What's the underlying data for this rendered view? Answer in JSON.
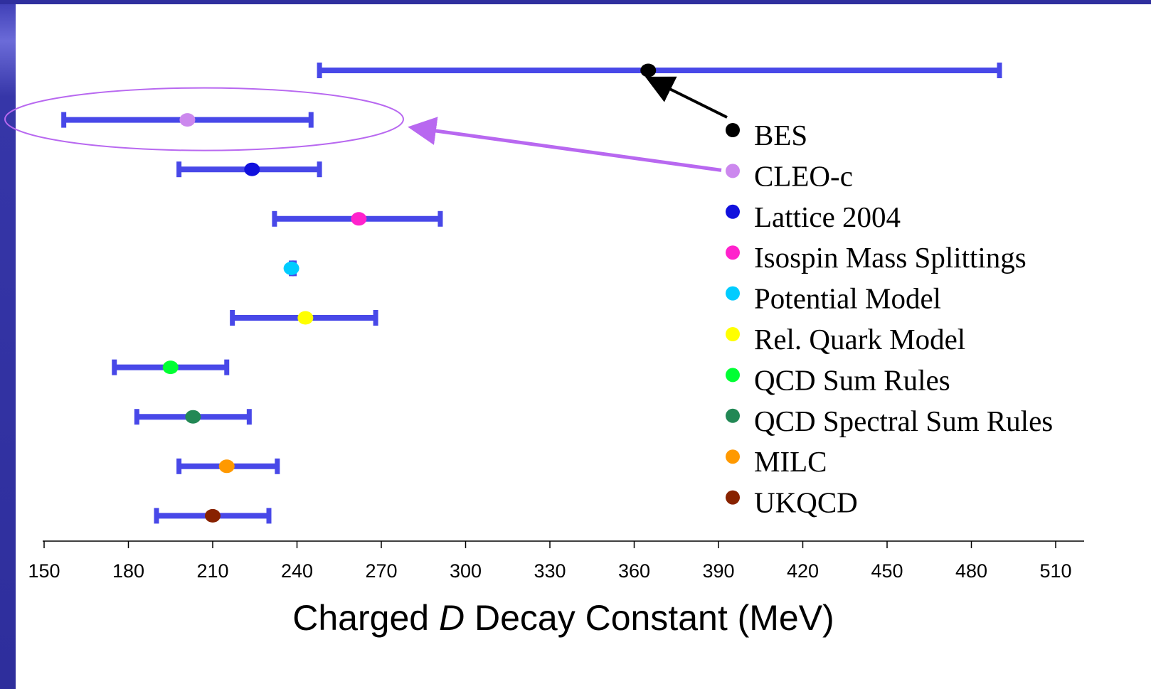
{
  "chart_data": {
    "type": "scatter",
    "xlabel_parts": [
      {
        "text": "Charged ",
        "italic": false
      },
      {
        "text": "D",
        "italic": true
      },
      {
        "text": " Decay Constant (MeV)",
        "italic": false
      }
    ],
    "xlim": [
      150,
      510
    ],
    "xticks": [
      150,
      180,
      210,
      240,
      270,
      300,
      330,
      360,
      390,
      420,
      450,
      480,
      510
    ],
    "grid": false,
    "legend_position": "right",
    "series": [
      {
        "name": "BES",
        "value": 365,
        "error_low": 248,
        "error_high": 490,
        "color": "#000000"
      },
      {
        "name": "CLEO-c",
        "value": 201,
        "error_low": 157,
        "error_high": 245,
        "color": "#cc88ee"
      },
      {
        "name": "Lattice 2004",
        "value": 224,
        "error_low": 198,
        "error_high": 248,
        "color": "#1111dd"
      },
      {
        "name": "Isospin Mass Splittings",
        "value": 262,
        "error_low": 232,
        "error_high": 291,
        "color": "#ff22cc"
      },
      {
        "name": "Potential Model",
        "value": 238,
        "error_low": 238,
        "error_high": 239,
        "color": "#00ccff"
      },
      {
        "name": "Rel. Quark Model",
        "value": 243,
        "error_low": 217,
        "error_high": 268,
        "color": "#ffff00"
      },
      {
        "name": "QCD Sum Rules",
        "value": 195,
        "error_low": 175,
        "error_high": 215,
        "color": "#00ff33"
      },
      {
        "name": "QCD Spectral Sum Rules",
        "value": 203,
        "error_low": 183,
        "error_high": 223,
        "color": "#228855"
      },
      {
        "name": "MILC",
        "value": 215,
        "error_low": 198,
        "error_high": 233,
        "color": "#ff9900"
      },
      {
        "name": "UKQCD",
        "value": 210,
        "error_low": 190,
        "error_high": 230,
        "color": "#882200"
      }
    ],
    "highlighted_series": "CLEO-c",
    "colors": {
      "error_bar": "#4848e8",
      "highlight": "#b868f0",
      "bes_arrow": "#000000"
    }
  }
}
